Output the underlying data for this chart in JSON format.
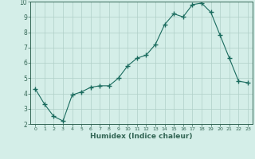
{
  "x": [
    0,
    1,
    2,
    3,
    4,
    5,
    6,
    7,
    8,
    9,
    10,
    11,
    12,
    13,
    14,
    15,
    16,
    17,
    18,
    19,
    20,
    21,
    22,
    23
  ],
  "y": [
    4.3,
    3.3,
    2.5,
    2.2,
    3.9,
    4.1,
    4.4,
    4.5,
    4.5,
    5.0,
    5.8,
    6.3,
    6.5,
    7.2,
    8.5,
    9.2,
    9.0,
    9.8,
    9.9,
    9.3,
    7.8,
    6.3,
    4.8,
    4.7
  ],
  "xlabel": "Humidex (Indice chaleur)",
  "ylim": [
    2,
    10
  ],
  "xlim": [
    -0.5,
    23.5
  ],
  "yticks": [
    2,
    3,
    4,
    5,
    6,
    7,
    8,
    9,
    10
  ],
  "xticks": [
    0,
    1,
    2,
    3,
    4,
    5,
    6,
    7,
    8,
    9,
    10,
    11,
    12,
    13,
    14,
    15,
    16,
    17,
    18,
    19,
    20,
    21,
    22,
    23
  ],
  "line_color": "#1a6b5e",
  "marker": "+",
  "bg_color": "#d4eee8",
  "grid_color": "#b0cfc8",
  "axis_color": "#336655"
}
